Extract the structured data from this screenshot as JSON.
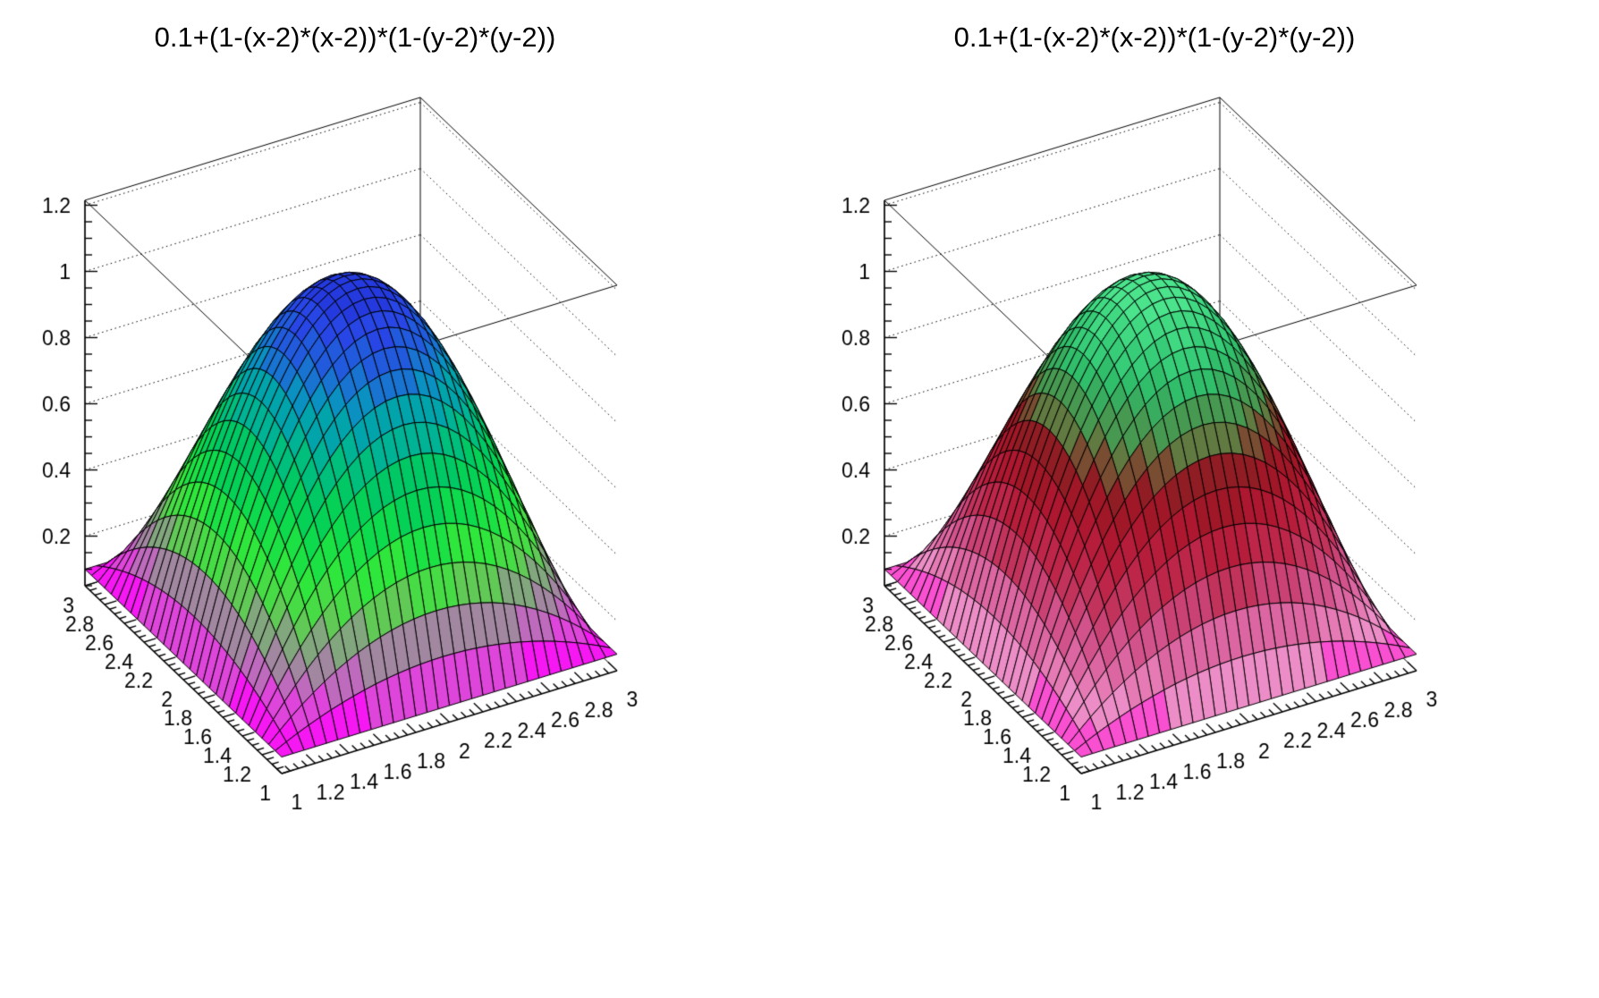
{
  "figure": {
    "background_color": "#ffffff",
    "frame_color": "#000000",
    "panel_count": 2
  },
  "chart_data": [
    {
      "type": "surface3d",
      "title": "0.1+(1-(x-2)*(x-2))*(1-(y-2)*(y-2))",
      "formula": "z = 0.1 + (1-(x-2)*(x-2)) * (1-(y-2)*(y-2))",
      "formula_params": {
        "offset": 0.1,
        "x0": 2,
        "y0": 2
      },
      "x_range": [
        1,
        3
      ],
      "y_range": [
        1,
        3
      ],
      "z_axis_range": [
        0.05,
        1.215
      ],
      "z_data_range": [
        0.1,
        1.1
      ],
      "mesh_divisions": 30,
      "color_levels": 20,
      "minor_tick_step": 0.05,
      "grid": "dotted-z-levels",
      "legend": "none",
      "x_ticks": [
        "1",
        "1.2",
        "1.4",
        "1.6",
        "1.8",
        "2",
        "2.2",
        "2.4",
        "2.6",
        "2.8",
        "3"
      ],
      "y_ticks": [
        "1",
        "1.2",
        "1.4",
        "1.6",
        "1.8",
        "2",
        "2.2",
        "2.4",
        "2.6",
        "2.8",
        "3"
      ],
      "z_ticks": [
        "0.2",
        "0.4",
        "0.6",
        "0.8",
        "1",
        "1.2"
      ],
      "frame_color": "#000000",
      "mesh_line_color": "#000000",
      "palette": [
        {
          "t": 0.0,
          "color": "#ff00ff"
        },
        {
          "t": 0.06,
          "color": "#e73ae3"
        },
        {
          "t": 0.13,
          "color": "#bb6fba"
        },
        {
          "t": 0.2,
          "color": "#929492"
        },
        {
          "t": 0.28,
          "color": "#5ecc52"
        },
        {
          "t": 0.36,
          "color": "#35e93a"
        },
        {
          "t": 0.46,
          "color": "#0fdd4a"
        },
        {
          "t": 0.56,
          "color": "#00cb5e"
        },
        {
          "t": 0.64,
          "color": "#00bb83"
        },
        {
          "t": 0.71,
          "color": "#00aaa4"
        },
        {
          "t": 0.78,
          "color": "#0b8fc4"
        },
        {
          "t": 0.85,
          "color": "#1f64d8"
        },
        {
          "t": 0.92,
          "color": "#2847e6"
        },
        {
          "t": 1.0,
          "color": "#2334da"
        }
      ]
    },
    {
      "type": "surface3d",
      "title": "0.1+(1-(x-2)*(x-2))*(1-(y-2)*(y-2))",
      "formula": "z = 0.1 + (1-(x-2)*(x-2)) * (1-(y-2)*(y-2))",
      "formula_params": {
        "offset": 0.1,
        "x0": 2,
        "y0": 2
      },
      "x_range": [
        1,
        3
      ],
      "y_range": [
        1,
        3
      ],
      "z_axis_range": [
        0.05,
        1.215
      ],
      "z_data_range": [
        0.1,
        1.1
      ],
      "mesh_divisions": 30,
      "color_levels": 20,
      "minor_tick_step": 0.05,
      "grid": "dotted-z-levels",
      "legend": "none",
      "x_ticks": [
        "1",
        "1.2",
        "1.4",
        "1.6",
        "1.8",
        "2",
        "2.2",
        "2.4",
        "2.6",
        "2.8",
        "3"
      ],
      "y_ticks": [
        "1",
        "1.2",
        "1.4",
        "1.6",
        "1.8",
        "2",
        "2.2",
        "2.4",
        "2.6",
        "2.8",
        "3"
      ],
      "z_ticks": [
        "0.2",
        "0.4",
        "0.6",
        "0.8",
        "1",
        "1.2"
      ],
      "frame_color": "#000000",
      "mesh_line_color": "#000000",
      "palette": [
        {
          "t": 0.0,
          "color": "#ff2bd6"
        },
        {
          "t": 0.07,
          "color": "#ee8fc9"
        },
        {
          "t": 0.15,
          "color": "#e170ab"
        },
        {
          "t": 0.23,
          "color": "#d1508a"
        },
        {
          "t": 0.31,
          "color": "#c43762"
        },
        {
          "t": 0.4,
          "color": "#ba203f"
        },
        {
          "t": 0.5,
          "color": "#a81429"
        },
        {
          "t": 0.58,
          "color": "#8e1e24"
        },
        {
          "t": 0.66,
          "color": "#67713c"
        },
        {
          "t": 0.74,
          "color": "#40a156"
        },
        {
          "t": 0.83,
          "color": "#2fc06c"
        },
        {
          "t": 0.92,
          "color": "#3fd881"
        },
        {
          "t": 1.0,
          "color": "#50e891"
        }
      ]
    }
  ]
}
